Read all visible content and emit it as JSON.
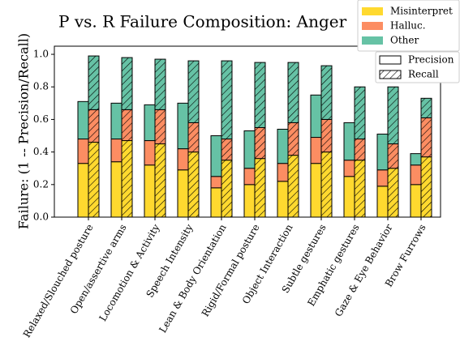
{
  "chart_data": {
    "type": "grouped_stacked_bar",
    "title": "P vs. R Failure Composition: Anger",
    "ylabel": "Failure: (1 -- Precision/Recall)",
    "categories": [
      "Relaxed/Slouched posture",
      "Open/assertive arms",
      "Locomotion & Activity",
      "Speech Intensity",
      "Lean & Body Orientation",
      "Rigid/Formal posture",
      "Object Interaction",
      "Subtle gestures",
      "Emphatic gestures",
      "Gaze & Eye Behavior",
      "Brow Furrows"
    ],
    "bar_groups": [
      {
        "name": "Precision",
        "hatch": false
      },
      {
        "name": "Recall",
        "hatch": true
      }
    ],
    "series": [
      {
        "name": "Misinterpret",
        "color": "#ffd92f",
        "values": [
          [
            0.33,
            0.34,
            0.32,
            0.29,
            0.18,
            0.2,
            0.22,
            0.33,
            0.25,
            0.19,
            0.2
          ],
          [
            0.46,
            0.47,
            0.45,
            0.4,
            0.35,
            0.36,
            0.38,
            0.4,
            0.35,
            0.3,
            0.37
          ]
        ]
      },
      {
        "name": "Halluc.",
        "color": "#fc8d62",
        "values": [
          [
            0.15,
            0.14,
            0.15,
            0.13,
            0.07,
            0.1,
            0.11,
            0.16,
            0.1,
            0.1,
            0.12
          ],
          [
            0.2,
            0.19,
            0.21,
            0.18,
            0.13,
            0.19,
            0.2,
            0.2,
            0.13,
            0.15,
            0.24
          ]
        ]
      },
      {
        "name": "Other",
        "color": "#66c2a5",
        "values": [
          [
            0.23,
            0.22,
            0.22,
            0.28,
            0.25,
            0.23,
            0.21,
            0.26,
            0.23,
            0.22,
            0.07
          ],
          [
            0.33,
            0.32,
            0.31,
            0.38,
            0.48,
            0.4,
            0.37,
            0.33,
            0.32,
            0.35,
            0.12
          ]
        ]
      }
    ],
    "ylim": [
      0,
      1.05
    ],
    "yticks": [
      {
        "value": 0,
        "label": "0.0"
      },
      {
        "value": 0.2,
        "label": "0.2"
      },
      {
        "value": 0.4,
        "label": "0.4"
      },
      {
        "value": 0.6,
        "label": "0.6"
      },
      {
        "value": 0.8,
        "label": "0.8"
      },
      {
        "value": 1,
        "label": "1.0"
      }
    ],
    "grid": false
  }
}
